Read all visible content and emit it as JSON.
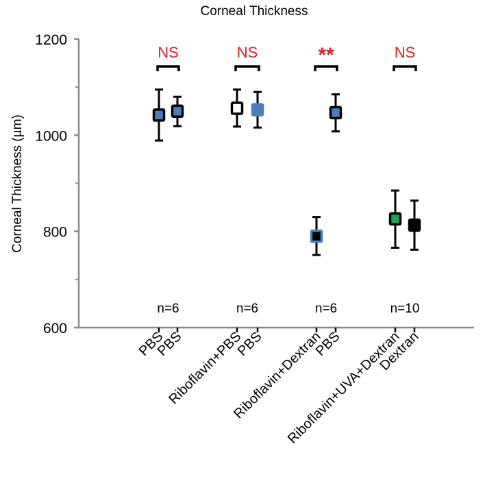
{
  "chart_data": {
    "type": "scatter",
    "title": "Corneal Thickness",
    "xlabel": "",
    "ylabel": "Corneal Thickness (µm)",
    "ylim": [
      600,
      1200
    ],
    "yticks": [
      600,
      800,
      1000,
      1200
    ],
    "yminor_ticks": [
      700,
      900,
      1100
    ],
    "grid": false,
    "legend": "none",
    "categories": [
      "PBS",
      "PBS",
      "Riboflavin+PBS",
      "PBS",
      "Riboflavin+Dextran",
      "PBS",
      "Riboflavin+UVA+Dextran",
      "Dextran"
    ],
    "points": [
      {
        "label": "PBS",
        "group": 1,
        "mean": 1042,
        "low": 989,
        "high": 1095,
        "fill": "#4a7ebf",
        "edge": "#000000"
      },
      {
        "label": "PBS",
        "group": 1,
        "mean": 1050,
        "low": 1019,
        "high": 1080,
        "fill": "#4a7ebf",
        "edge": "#000000"
      },
      {
        "label": "Riboflavin+PBS",
        "group": 2,
        "mean": 1056,
        "low": 1018,
        "high": 1095,
        "fill": "#ffffff",
        "edge": "#000000"
      },
      {
        "label": "PBS",
        "group": 2,
        "mean": 1053,
        "low": 1016,
        "high": 1090,
        "fill": "#4a7ebf",
        "edge": "#4a7ebf"
      },
      {
        "label": "Riboflavin+Dextran",
        "group": 3,
        "mean": 790,
        "low": 751,
        "high": 830,
        "fill": "#000000",
        "edge": "#4a7ebf"
      },
      {
        "label": "PBS",
        "group": 3,
        "mean": 1047,
        "low": 1008,
        "high": 1085,
        "fill": "#4a7ebf",
        "edge": "#000000"
      },
      {
        "label": "Riboflavin+UVA+Dextran",
        "group": 4,
        "mean": 826,
        "low": 766,
        "high": 885,
        "fill": "#1aa556",
        "edge": "#000000"
      },
      {
        "label": "Dextran",
        "group": 4,
        "mean": 813,
        "low": 762,
        "high": 864,
        "fill": "#000000",
        "edge": "#000000"
      }
    ],
    "annotations": {
      "significance": [
        "NS",
        "NS",
        "**",
        "NS"
      ],
      "n_labels": [
        "n=6",
        "n=6",
        "n=6",
        "n=10"
      ]
    },
    "colors": {
      "axis": "#8a8a8a",
      "significance": "#e02027"
    }
  }
}
